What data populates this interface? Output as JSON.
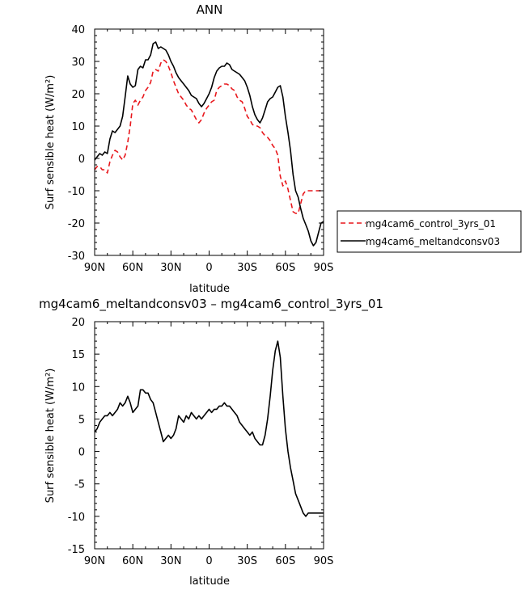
{
  "chart_data": [
    {
      "type": "line",
      "title": "ANN",
      "xlabel": "latitude",
      "ylabel": "Surf sensible heat (W/m²)",
      "xlim": [
        90,
        -90
      ],
      "ylim": [
        -30,
        40
      ],
      "x_ticks": [
        "90N",
        "60N",
        "30N",
        "0",
        "30S",
        "60S",
        "90S"
      ],
      "y_ticks": [
        "40",
        "30",
        "20",
        "10",
        "0",
        "-10",
        "-20",
        "-30"
      ],
      "legend_position": "right",
      "series": [
        {
          "name": "mg4cam6_control_3yrs_01",
          "color": "#e8171c",
          "dash": "dashed",
          "x": [
            90,
            88,
            86,
            84,
            82,
            80,
            78,
            76,
            74,
            72,
            70,
            68,
            66,
            64,
            62,
            60,
            58,
            56,
            54,
            52,
            50,
            48,
            46,
            44,
            42,
            40,
            38,
            36,
            34,
            32,
            30,
            28,
            26,
            24,
            22,
            20,
            18,
            16,
            14,
            12,
            10,
            8,
            6,
            4,
            2,
            0,
            -2,
            -4,
            -6,
            -8,
            -10,
            -12,
            -14,
            -16,
            -18,
            -20,
            -22,
            -24,
            -26,
            -28,
            -30,
            -32,
            -34,
            -36,
            -38,
            -40,
            -42,
            -44,
            -46,
            -48,
            -50,
            -52,
            -54,
            -56,
            -58,
            -60,
            -62,
            -64,
            -66,
            -68,
            -70,
            -72,
            -74,
            -76,
            -78,
            -80,
            -82,
            -84,
            -86,
            -88,
            -90
          ],
          "y": [
            -3.5,
            -2.5,
            -2.5,
            -3.5,
            -3.5,
            -4.5,
            -1.0,
            1.0,
            2.5,
            2.0,
            0.5,
            -0.5,
            1.0,
            5.0,
            10.0,
            17.0,
            18.0,
            16.5,
            18.0,
            19.0,
            21.0,
            22.0,
            23.5,
            27.0,
            27.5,
            27.0,
            29.5,
            30.5,
            30.0,
            28.5,
            26.5,
            24.0,
            22.0,
            20.0,
            19.0,
            18.0,
            16.5,
            15.5,
            15.0,
            13.5,
            12.0,
            11.0,
            12.0,
            14.0,
            15.5,
            16.5,
            17.5,
            18.0,
            21.0,
            22.0,
            22.5,
            23.0,
            23.0,
            22.5,
            21.5,
            21.0,
            19.0,
            18.0,
            17.5,
            15.5,
            13.0,
            12.0,
            10.5,
            10.0,
            10.0,
            9.5,
            8.0,
            7.0,
            6.5,
            5.5,
            4.0,
            3.0,
            1.0,
            -5.5,
            -8.5,
            -7.0,
            -9.5,
            -13.0,
            -16.5,
            -17.0,
            -17.0,
            -14.0,
            -11.0,
            -10.0,
            -10.0,
            -10.0,
            -10.0,
            -10.0,
            -10.0,
            -10.0,
            -10.0
          ]
        },
        {
          "name": "mg4cam6_meltandconsv03",
          "color": "#000000",
          "dash": "solid",
          "x": [
            90,
            88,
            86,
            84,
            82,
            80,
            78,
            76,
            74,
            72,
            70,
            68,
            66,
            64,
            62,
            60,
            58,
            56,
            54,
            52,
            50,
            48,
            46,
            44,
            42,
            40,
            38,
            36,
            34,
            32,
            30,
            28,
            26,
            24,
            22,
            20,
            18,
            16,
            14,
            12,
            10,
            8,
            6,
            4,
            2,
            0,
            -2,
            -4,
            -6,
            -8,
            -10,
            -12,
            -14,
            -16,
            -18,
            -20,
            -22,
            -24,
            -26,
            -28,
            -30,
            -32,
            -34,
            -36,
            -38,
            -40,
            -42,
            -44,
            -46,
            -48,
            -50,
            -52,
            -54,
            -56,
            -58,
            -60,
            -62,
            -64,
            -66,
            -68,
            -70,
            -72,
            -74,
            -76,
            -78,
            -80,
            -82,
            -84,
            -86,
            -88,
            -90
          ],
          "y": [
            -0.5,
            0.5,
            1.5,
            1.0,
            2.0,
            1.5,
            6.0,
            8.5,
            8.0,
            9.0,
            10.0,
            13.0,
            19.0,
            25.5,
            23.0,
            22.0,
            22.5,
            27.5,
            28.5,
            28.0,
            30.5,
            30.5,
            32.0,
            35.5,
            36.0,
            34.0,
            34.5,
            34.0,
            33.5,
            32.0,
            30.0,
            28.5,
            26.5,
            25.0,
            24.0,
            23.0,
            22.0,
            21.0,
            19.5,
            19.0,
            18.5,
            17.0,
            16.0,
            17.0,
            18.5,
            20.0,
            22.0,
            25.0,
            27.0,
            28.0,
            28.5,
            28.5,
            29.5,
            29.0,
            27.5,
            27.0,
            26.5,
            26.0,
            25.0,
            24.0,
            22.0,
            19.5,
            16.0,
            13.5,
            12.0,
            11.0,
            12.5,
            15.0,
            17.5,
            18.5,
            19.0,
            20.5,
            22.0,
            22.5,
            19.0,
            13.0,
            8.0,
            2.5,
            -5.0,
            -10.0,
            -12.0,
            -15.5,
            -18.5,
            -20.5,
            -22.5,
            -25.5,
            -27.0,
            -26.0,
            -23.0,
            -20.0,
            -19.5
          ]
        }
      ]
    },
    {
      "type": "line",
      "title": "mg4cam6_meltandconsv03 – mg4cam6_control_3yrs_01",
      "xlabel": "latitude",
      "ylabel": "Surf sensible heat (W/m²)",
      "xlim": [
        90,
        -90
      ],
      "ylim": [
        -15,
        20
      ],
      "x_ticks": [
        "90N",
        "60N",
        "30N",
        "0",
        "30S",
        "60S",
        "90S"
      ],
      "y_ticks": [
        "20",
        "15",
        "10",
        "5",
        "0",
        "-5",
        "-10",
        "-15"
      ],
      "series": [
        {
          "color": "#000000",
          "dash": "solid",
          "x": [
            90,
            88,
            86,
            84,
            82,
            80,
            78,
            76,
            74,
            72,
            70,
            68,
            66,
            64,
            62,
            60,
            58,
            56,
            54,
            52,
            50,
            48,
            46,
            44,
            42,
            40,
            38,
            36,
            34,
            32,
            30,
            28,
            26,
            24,
            22,
            20,
            18,
            16,
            14,
            12,
            10,
            8,
            6,
            4,
            2,
            0,
            -2,
            -4,
            -6,
            -8,
            -10,
            -12,
            -14,
            -16,
            -18,
            -20,
            -22,
            -24,
            -26,
            -28,
            -30,
            -32,
            -34,
            -36,
            -38,
            -40,
            -42,
            -44,
            -46,
            -48,
            -50,
            -52,
            -54,
            -56,
            -58,
            -60,
            -62,
            -64,
            -66,
            -68,
            -70,
            -72,
            -74,
            -76,
            -78,
            -80,
            -82,
            -84,
            -86,
            -88,
            -90
          ],
          "y": [
            3.0,
            3.5,
            4.5,
            5.0,
            5.5,
            5.5,
            6.0,
            5.5,
            6.0,
            6.5,
            7.5,
            7.0,
            7.5,
            8.5,
            7.5,
            6.0,
            6.5,
            7.0,
            9.5,
            9.5,
            9.0,
            9.0,
            8.0,
            7.5,
            6.0,
            4.5,
            3.0,
            1.5,
            2.0,
            2.5,
            2.0,
            2.5,
            3.5,
            5.5,
            5.0,
            4.5,
            5.5,
            5.0,
            6.0,
            5.5,
            5.0,
            5.5,
            5.0,
            5.5,
            6.0,
            6.5,
            6.0,
            6.5,
            6.5,
            7.0,
            7.0,
            7.5,
            7.0,
            7.0,
            6.5,
            6.0,
            5.5,
            4.5,
            4.0,
            3.5,
            3.0,
            2.5,
            3.0,
            2.0,
            1.5,
            1.0,
            1.0,
            2.5,
            5.0,
            8.5,
            12.5,
            15.5,
            17.0,
            14.5,
            8.5,
            3.5,
            0.0,
            -2.5,
            -4.5,
            -6.5,
            -7.5,
            -8.5,
            -9.5,
            -10.0,
            -9.5,
            -9.5,
            -9.5,
            -9.5,
            -9.5,
            -9.5,
            -9.5
          ]
        }
      ]
    }
  ]
}
